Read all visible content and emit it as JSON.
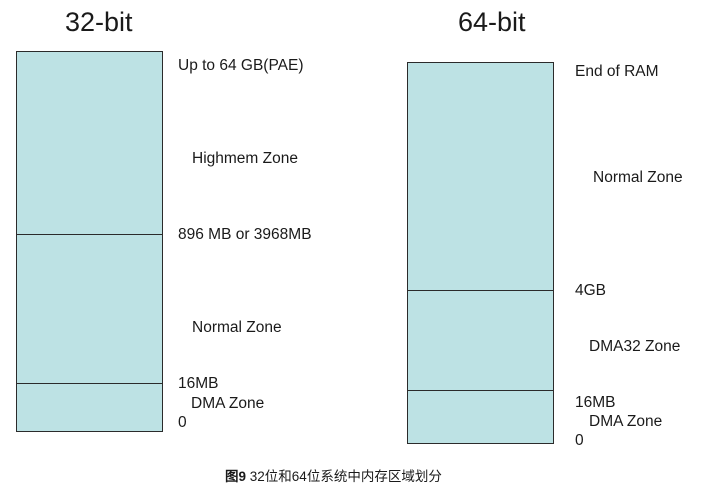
{
  "diagram": {
    "left": {
      "title": "32-bit",
      "labels": {
        "top": "Up to 64 GB(PAE)",
        "zone_high": "Highmem Zone",
        "boundary_high": "896 MB or 3968MB",
        "zone_normal": "Normal Zone",
        "boundary_low": "16MB",
        "zone_dma": "DMA Zone",
        "bottom": "0"
      }
    },
    "right": {
      "title": "64-bit",
      "labels": {
        "top": "End of RAM",
        "zone_normal": "Normal  Zone",
        "boundary_high": "4GB",
        "zone_dma32": "DMA32 Zone",
        "boundary_low": "16MB",
        "zone_dma": "DMA Zone",
        "bottom": "0"
      }
    },
    "caption": {
      "prefix": "图9",
      "text": "32位和64位系统中内存区域划分"
    },
    "colors": {
      "zone_fill": "#bde2e4",
      "border": "#2b2b2b"
    }
  }
}
